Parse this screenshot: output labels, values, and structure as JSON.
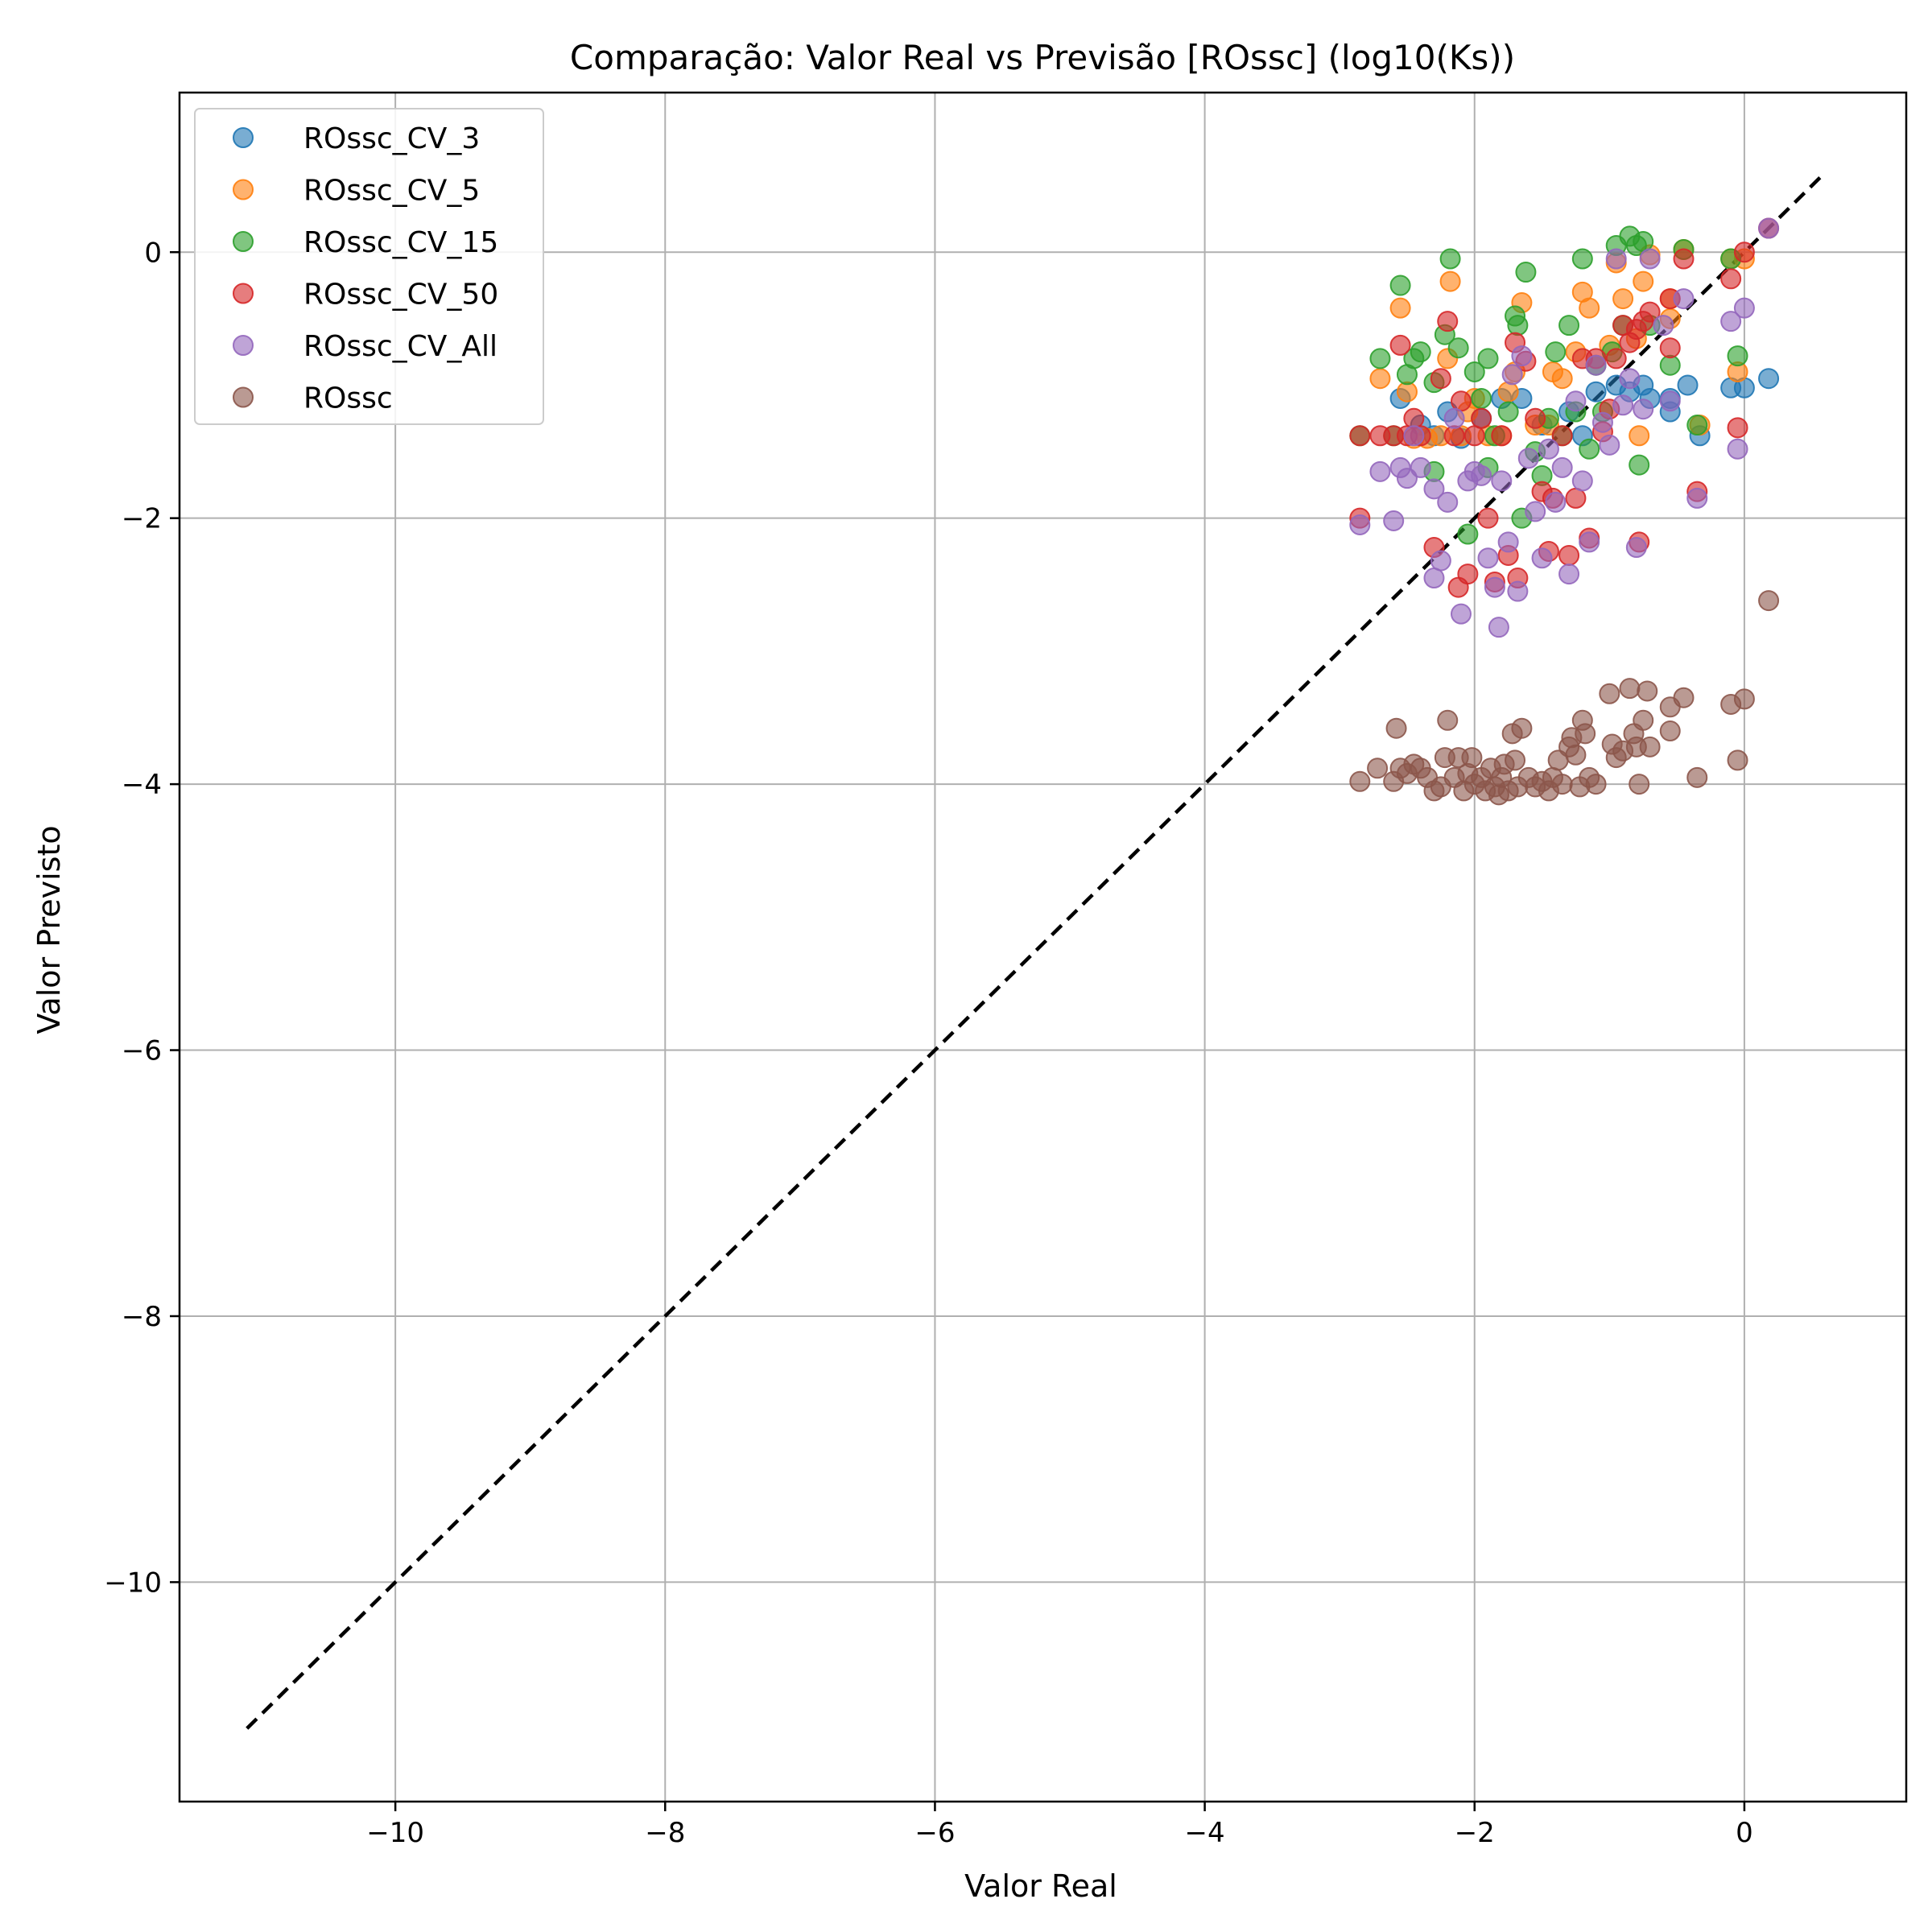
{
  "chart_data": {
    "type": "scatter",
    "title": "Comparação: Valor Real vs Previsão [ROssc] (log10(Ks))",
    "xlabel": "Valor Real",
    "ylabel": "Valor Previsto",
    "xlim": [
      -11.6,
      1.2
    ],
    "ylim": [
      -11.65,
      1.2
    ],
    "xticks": [
      -10,
      -8,
      -6,
      -4,
      -2,
      0
    ],
    "yticks": [
      0,
      -2,
      -4,
      -6,
      -8,
      -10
    ],
    "xtick_labels": [
      "−10",
      "−8",
      "−6",
      "−4",
      "−2",
      "0"
    ],
    "ytick_labels": [
      "0",
      "−2",
      "−4",
      "−6",
      "−8",
      "−10"
    ],
    "grid": true,
    "legend_position": "top-left",
    "reference_line": {
      "style": "dashed",
      "color": "#000000",
      "x": [
        -11.1,
        0.6
      ],
      "y": [
        -11.1,
        0.6
      ]
    },
    "series": [
      {
        "name": "ROssc_CV_3",
        "color": "#1f77b4",
        "points": [
          [
            -2.55,
            -1.1
          ],
          [
            -2.4,
            -1.3
          ],
          [
            -2.2,
            -1.2
          ],
          [
            -2.1,
            -1.4
          ],
          [
            -1.95,
            -1.25
          ],
          [
            -1.8,
            -1.1
          ],
          [
            -1.65,
            -1.1
          ],
          [
            -1.5,
            -1.3
          ],
          [
            -1.3,
            -1.2
          ],
          [
            -1.1,
            -1.05
          ],
          [
            -0.95,
            -1.0
          ],
          [
            -0.85,
            -1.05
          ],
          [
            -0.75,
            -1.0
          ],
          [
            -0.7,
            -1.1
          ],
          [
            -0.55,
            -1.1
          ],
          [
            -0.55,
            -1.2
          ],
          [
            -0.42,
            -1.0
          ],
          [
            -0.33,
            -1.38
          ],
          [
            -0.1,
            -1.02
          ],
          [
            0.0,
            -1.02
          ],
          [
            0.18,
            -0.95
          ],
          [
            -2.3,
            -1.38
          ],
          [
            -1.2,
            -1.38
          ]
        ]
      },
      {
        "name": "ROssc_CV_5",
        "color": "#ff7f0e",
        "points": [
          [
            -2.7,
            -0.95
          ],
          [
            -2.55,
            -0.42
          ],
          [
            -2.5,
            -1.05
          ],
          [
            -2.45,
            -1.4
          ],
          [
            -2.35,
            -1.4
          ],
          [
            -2.25,
            -1.38
          ],
          [
            -2.2,
            -0.8
          ],
          [
            -2.18,
            -0.22
          ],
          [
            -2.1,
            -1.38
          ],
          [
            -2.05,
            -1.2
          ],
          [
            -2.0,
            -1.1
          ],
          [
            -1.9,
            -1.38
          ],
          [
            -1.8,
            -1.38
          ],
          [
            -1.7,
            -0.9
          ],
          [
            -1.65,
            -0.38
          ],
          [
            -1.55,
            -1.3
          ],
          [
            -1.45,
            -1.3
          ],
          [
            -1.42,
            -0.9
          ],
          [
            -1.35,
            -0.95
          ],
          [
            -1.25,
            -0.75
          ],
          [
            -1.2,
            -0.3
          ],
          [
            -1.15,
            -0.42
          ],
          [
            -1.0,
            -0.7
          ],
          [
            -0.95,
            -0.08
          ],
          [
            -0.9,
            -0.35
          ],
          [
            -0.8,
            -0.65
          ],
          [
            -0.75,
            -0.22
          ],
          [
            -0.7,
            -0.02
          ],
          [
            -0.78,
            -1.38
          ],
          [
            -0.55,
            -0.35
          ],
          [
            -0.55,
            -0.5
          ],
          [
            -0.45,
            0.02
          ],
          [
            -0.33,
            -1.3
          ],
          [
            -0.1,
            -0.05
          ],
          [
            -0.05,
            -0.9
          ],
          [
            0.0,
            -0.05
          ],
          [
            -1.75,
            -1.05
          ]
        ]
      },
      {
        "name": "ROssc_CV_15",
        "color": "#2ca02c",
        "points": [
          [
            -2.85,
            -1.38
          ],
          [
            -2.7,
            -0.8
          ],
          [
            -2.6,
            -1.38
          ],
          [
            -2.55,
            -0.25
          ],
          [
            -2.5,
            -0.92
          ],
          [
            -2.45,
            -0.8
          ],
          [
            -2.4,
            -0.75
          ],
          [
            -2.3,
            -0.98
          ],
          [
            -2.22,
            -0.62
          ],
          [
            -2.18,
            -0.05
          ],
          [
            -2.12,
            -0.72
          ],
          [
            -2.05,
            -2.12
          ],
          [
            -2.0,
            -0.9
          ],
          [
            -1.95,
            -1.1
          ],
          [
            -1.9,
            -0.8
          ],
          [
            -1.85,
            -1.38
          ],
          [
            -1.75,
            -1.2
          ],
          [
            -1.7,
            -0.48
          ],
          [
            -1.68,
            -0.55
          ],
          [
            -1.65,
            -2.0
          ],
          [
            -1.62,
            -0.15
          ],
          [
            -1.55,
            -1.5
          ],
          [
            -1.5,
            -1.68
          ],
          [
            -1.45,
            -1.25
          ],
          [
            -1.4,
            -0.75
          ],
          [
            -1.35,
            -1.38
          ],
          [
            -1.3,
            -0.55
          ],
          [
            -1.25,
            -1.2
          ],
          [
            -1.2,
            -0.05
          ],
          [
            -1.15,
            -1.48
          ],
          [
            -1.1,
            -0.85
          ],
          [
            -1.05,
            -1.2
          ],
          [
            -0.98,
            -0.75
          ],
          [
            -0.95,
            0.05
          ],
          [
            -0.9,
            -0.55
          ],
          [
            -0.85,
            0.12
          ],
          [
            -0.8,
            0.05
          ],
          [
            -0.78,
            -1.6
          ],
          [
            -0.75,
            0.08
          ],
          [
            -0.7,
            -0.55
          ],
          [
            -0.55,
            -0.85
          ],
          [
            -0.45,
            0.02
          ],
          [
            -0.35,
            -1.3
          ],
          [
            -0.1,
            -0.05
          ],
          [
            -0.05,
            -0.78
          ],
          [
            -2.3,
            -1.65
          ],
          [
            -1.9,
            -1.62
          ]
        ]
      },
      {
        "name": "ROssc_CV_50",
        "color": "#d62728",
        "points": [
          [
            -2.85,
            -2.0
          ],
          [
            -2.85,
            -1.38
          ],
          [
            -2.7,
            -1.38
          ],
          [
            -2.6,
            -1.38
          ],
          [
            -2.55,
            -0.7
          ],
          [
            -2.5,
            -1.38
          ],
          [
            -2.45,
            -1.25
          ],
          [
            -2.4,
            -1.38
          ],
          [
            -2.3,
            -2.22
          ],
          [
            -2.25,
            -0.95
          ],
          [
            -2.2,
            -0.52
          ],
          [
            -2.15,
            -1.38
          ],
          [
            -2.12,
            -2.52
          ],
          [
            -2.1,
            -1.12
          ],
          [
            -2.05,
            -2.42
          ],
          [
            -2.0,
            -1.38
          ],
          [
            -1.95,
            -1.25
          ],
          [
            -1.9,
            -2.0
          ],
          [
            -1.85,
            -2.48
          ],
          [
            -1.8,
            -1.38
          ],
          [
            -1.75,
            -2.28
          ],
          [
            -1.7,
            -0.68
          ],
          [
            -1.68,
            -2.45
          ],
          [
            -1.62,
            -0.82
          ],
          [
            -1.55,
            -1.25
          ],
          [
            -1.5,
            -1.8
          ],
          [
            -1.45,
            -2.25
          ],
          [
            -1.42,
            -1.85
          ],
          [
            -1.35,
            -1.38
          ],
          [
            -1.3,
            -2.28
          ],
          [
            -1.25,
            -1.85
          ],
          [
            -1.2,
            -0.8
          ],
          [
            -1.15,
            -2.15
          ],
          [
            -1.1,
            -0.8
          ],
          [
            -1.05,
            -1.35
          ],
          [
            -1.0,
            -1.18
          ],
          [
            -0.95,
            -0.8
          ],
          [
            -0.9,
            -0.55
          ],
          [
            -0.85,
            -0.68
          ],
          [
            -0.8,
            -0.58
          ],
          [
            -0.78,
            -2.18
          ],
          [
            -0.75,
            -0.52
          ],
          [
            -0.7,
            -0.45
          ],
          [
            -0.55,
            -0.35
          ],
          [
            -0.55,
            -0.72
          ],
          [
            -0.45,
            -0.05
          ],
          [
            -0.35,
            -1.8
          ],
          [
            -0.1,
            -0.2
          ],
          [
            -0.05,
            -1.32
          ],
          [
            0.0,
            0.0
          ],
          [
            0.18,
            0.18
          ]
        ]
      },
      {
        "name": "ROssc_CV_All",
        "color": "#9467bd",
        "points": [
          [
            -2.85,
            -2.05
          ],
          [
            -2.7,
            -1.65
          ],
          [
            -2.6,
            -2.02
          ],
          [
            -2.55,
            -1.62
          ],
          [
            -2.5,
            -1.7
          ],
          [
            -2.45,
            -1.38
          ],
          [
            -2.4,
            -1.62
          ],
          [
            -2.3,
            -1.78
          ],
          [
            -2.3,
            -2.45
          ],
          [
            -2.25,
            -2.32
          ],
          [
            -2.2,
            -1.88
          ],
          [
            -2.15,
            -1.25
          ],
          [
            -2.1,
            -2.72
          ],
          [
            -2.05,
            -1.72
          ],
          [
            -2.0,
            -1.65
          ],
          [
            -1.95,
            -1.68
          ],
          [
            -1.9,
            -2.3
          ],
          [
            -1.85,
            -2.52
          ],
          [
            -1.82,
            -2.82
          ],
          [
            -1.8,
            -1.72
          ],
          [
            -1.75,
            -2.18
          ],
          [
            -1.72,
            -0.92
          ],
          [
            -1.68,
            -2.55
          ],
          [
            -1.65,
            -0.78
          ],
          [
            -1.6,
            -1.55
          ],
          [
            -1.55,
            -1.95
          ],
          [
            -1.5,
            -2.3
          ],
          [
            -1.45,
            -1.48
          ],
          [
            -1.4,
            -1.88
          ],
          [
            -1.35,
            -1.62
          ],
          [
            -1.3,
            -2.42
          ],
          [
            -1.25,
            -1.12
          ],
          [
            -1.2,
            -1.72
          ],
          [
            -1.15,
            -2.18
          ],
          [
            -1.1,
            -0.85
          ],
          [
            -1.05,
            -1.28
          ],
          [
            -1.0,
            -1.45
          ],
          [
            -0.95,
            -0.05
          ],
          [
            -0.9,
            -1.15
          ],
          [
            -0.85,
            -0.95
          ],
          [
            -0.8,
            -2.22
          ],
          [
            -0.75,
            -1.18
          ],
          [
            -0.7,
            -0.05
          ],
          [
            -0.6,
            -0.55
          ],
          [
            -0.55,
            -1.12
          ],
          [
            -0.45,
            -0.35
          ],
          [
            -0.35,
            -1.85
          ],
          [
            -0.1,
            -0.52
          ],
          [
            -0.05,
            -1.48
          ],
          [
            0.0,
            -0.42
          ],
          [
            0.18,
            0.18
          ]
        ]
      },
      {
        "name": "ROssc",
        "color": "#8c564b",
        "points": [
          [
            -2.85,
            -3.98
          ],
          [
            -2.72,
            -3.88
          ],
          [
            -2.6,
            -3.98
          ],
          [
            -2.58,
            -3.58
          ],
          [
            -2.55,
            -3.88
          ],
          [
            -2.5,
            -3.92
          ],
          [
            -2.45,
            -3.85
          ],
          [
            -2.4,
            -3.88
          ],
          [
            -2.35,
            -3.95
          ],
          [
            -2.3,
            -4.05
          ],
          [
            -2.25,
            -4.02
          ],
          [
            -2.22,
            -3.8
          ],
          [
            -2.2,
            -3.52
          ],
          [
            -2.15,
            -3.95
          ],
          [
            -2.12,
            -3.8
          ],
          [
            -2.08,
            -4.05
          ],
          [
            -2.05,
            -3.92
          ],
          [
            -2.02,
            -3.8
          ],
          [
            -2.0,
            -4.0
          ],
          [
            -1.95,
            -3.95
          ],
          [
            -1.92,
            -4.05
          ],
          [
            -1.88,
            -3.88
          ],
          [
            -1.85,
            -4.02
          ],
          [
            -1.82,
            -4.08
          ],
          [
            -1.8,
            -3.95
          ],
          [
            -1.78,
            -3.85
          ],
          [
            -1.75,
            -4.05
          ],
          [
            -1.72,
            -3.62
          ],
          [
            -1.7,
            -3.82
          ],
          [
            -1.68,
            -4.02
          ],
          [
            -1.65,
            -3.58
          ],
          [
            -1.6,
            -3.95
          ],
          [
            -1.55,
            -4.02
          ],
          [
            -1.5,
            -3.98
          ],
          [
            -1.45,
            -4.05
          ],
          [
            -1.42,
            -3.95
          ],
          [
            -1.38,
            -3.82
          ],
          [
            -1.35,
            -4.0
          ],
          [
            -1.3,
            -3.72
          ],
          [
            -1.28,
            -3.65
          ],
          [
            -1.25,
            -3.78
          ],
          [
            -1.22,
            -4.02
          ],
          [
            -1.2,
            -3.52
          ],
          [
            -1.18,
            -3.62
          ],
          [
            -1.15,
            -3.95
          ],
          [
            -1.1,
            -4.0
          ],
          [
            -1.0,
            -3.32
          ],
          [
            -0.98,
            -3.7
          ],
          [
            -0.95,
            -3.8
          ],
          [
            -0.9,
            -3.75
          ],
          [
            -0.85,
            -3.28
          ],
          [
            -0.82,
            -3.62
          ],
          [
            -0.8,
            -3.72
          ],
          [
            -0.78,
            -4.0
          ],
          [
            -0.75,
            -3.52
          ],
          [
            -0.72,
            -3.3
          ],
          [
            -0.7,
            -3.72
          ],
          [
            -0.55,
            -3.42
          ],
          [
            -0.55,
            -3.6
          ],
          [
            -0.45,
            -3.35
          ],
          [
            -0.35,
            -3.95
          ],
          [
            -0.1,
            -3.4
          ],
          [
            -0.05,
            -3.82
          ],
          [
            0.0,
            -3.36
          ],
          [
            0.18,
            -2.62
          ]
        ]
      }
    ]
  }
}
